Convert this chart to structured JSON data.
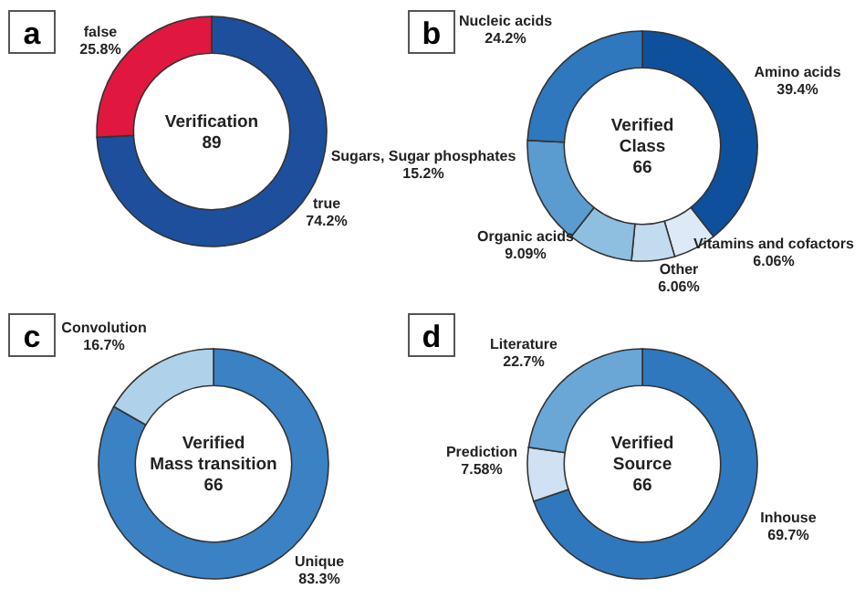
{
  "chart_data": [
    {
      "type": "donut",
      "title": "a",
      "annotations": [
        "Verification",
        "89"
      ],
      "categories": [
        "true",
        "false"
      ],
      "values": [
        74.2,
        25.8
      ],
      "colors": [
        "#1d4f9c",
        "#e0173f"
      ],
      "value_labels": [
        "74.2%",
        "25.8%"
      ]
    },
    {
      "type": "donut",
      "title": "b",
      "annotations": [
        "Verified",
        "Class",
        "66"
      ],
      "categories": [
        "Amino acids",
        "Vitamins and cofactors",
        "Other",
        "Organic acids",
        "Sugars, Sugar phosphates",
        "Nucleic acids"
      ],
      "values": [
        39.4,
        6.06,
        6.06,
        9.09,
        15.2,
        24.2
      ],
      "colors": [
        "#0e509b",
        "#dde9f6",
        "#c3dbef",
        "#8fbfe0",
        "#5a9bd0",
        "#2f78bd"
      ],
      "value_labels": [
        "39.4%",
        "6.06%",
        "6.06%",
        "9.09%",
        "15.2%",
        "24.2%"
      ]
    },
    {
      "type": "donut",
      "title": "c",
      "annotations": [
        "Verified",
        "Mass transition",
        "66"
      ],
      "categories": [
        "Unique",
        "Convolution"
      ],
      "values": [
        83.3,
        16.7
      ],
      "colors": [
        "#3a82c4",
        "#b0d1ea"
      ],
      "value_labels": [
        "83.3%",
        "16.7%"
      ]
    },
    {
      "type": "donut",
      "title": "d",
      "annotations": [
        "Verified",
        "Source",
        "66"
      ],
      "categories": [
        "Inhouse",
        "Prediction",
        "Literature"
      ],
      "values": [
        69.7,
        7.58,
        22.7
      ],
      "colors": [
        "#2f78bd",
        "#cfe1f2",
        "#6aa7d7"
      ],
      "value_labels": [
        "69.7%",
        "7.58%",
        "22.7%"
      ]
    }
  ]
}
